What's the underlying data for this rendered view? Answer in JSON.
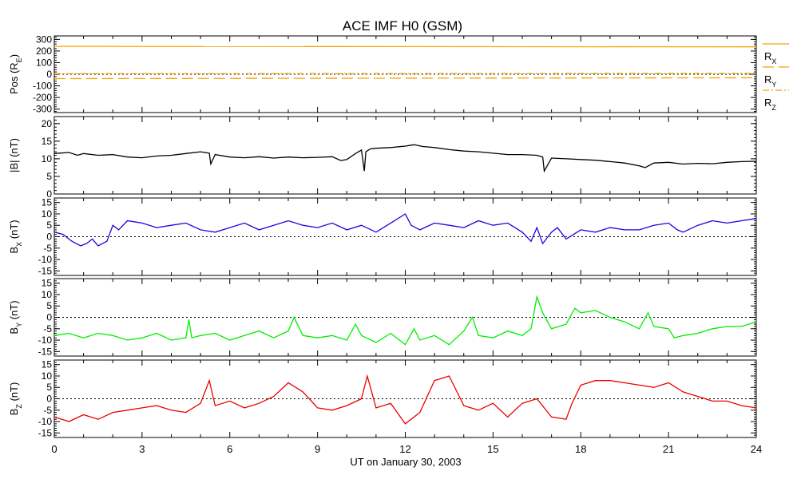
{
  "chart_data": {
    "type": "line",
    "title": "ACE IMF H0 (GSM)",
    "xlabel": "UT on January 30, 2003",
    "x_range": [
      0,
      24
    ],
    "x_ticks": [
      "0",
      "3",
      "6",
      "9",
      "12",
      "15",
      "18",
      "21",
      "24"
    ],
    "panels": [
      {
        "id": "pos",
        "ylabel_main": "Pos (R",
        "ylabel_sub": "E",
        "ylabel_tail": ")",
        "ylim": [
          -330,
          330
        ],
        "y_ticks": [
          300,
          200,
          100,
          0,
          -100,
          -200,
          -300
        ],
        "zero_line": true,
        "legend": [
          {
            "main": "R",
            "sub": "X",
            "dash": "solid",
            "color": "#f5a300"
          },
          {
            "main": "R",
            "sub": "Y",
            "dash": "longdash",
            "color": "#f5a300"
          },
          {
            "main": "R",
            "sub": "Z",
            "dash": "dashdot",
            "color": "#f5a300"
          }
        ],
        "series": [
          {
            "color": "#f5a300",
            "dash": "solid",
            "x": [
              0,
              24
            ],
            "y": [
              240,
              236
            ]
          },
          {
            "color": "#f5a300",
            "dash": "longdash",
            "x": [
              0,
              24
            ],
            "y": [
              -38,
              -30
            ]
          },
          {
            "color": "#f5a300",
            "dash": "dashdot",
            "x": [
              0,
              24
            ],
            "y": [
              5,
              7
            ]
          }
        ]
      },
      {
        "id": "btotal",
        "ylabel_main": "|B| (nT)",
        "ylabel_sub": "",
        "ylabel_tail": "",
        "ylim": [
          0,
          22
        ],
        "y_ticks": [
          20,
          15,
          10,
          5,
          0
        ],
        "zero_line": false,
        "series": [
          {
            "color": "#000000",
            "dash": "solid",
            "x": [
              0,
              0.5,
              0.8,
              1,
              1.5,
              2,
              2.5,
              3,
              3.5,
              4,
              4.5,
              5,
              5.3,
              5.35,
              5.5,
              6,
              6.5,
              7,
              7.5,
              8,
              8.5,
              9,
              9.5,
              9.8,
              10,
              10.3,
              10.5,
              10.6,
              10.65,
              10.8,
              11,
              11.5,
              12,
              12.3,
              12.6,
              13,
              13.5,
              14,
              14.5,
              15,
              15.5,
              16,
              16.5,
              16.7,
              16.75,
              17,
              17.5,
              18,
              18.5,
              19,
              19.5,
              20,
              20.2,
              20.5,
              21,
              21.5,
              22,
              22.5,
              23,
              23.5,
              24
            ],
            "y": [
              11.5,
              11.8,
              11,
              11.5,
              11,
              11.2,
              10.5,
              10.3,
              10.8,
              11,
              11.5,
              12,
              11.6,
              8.5,
              11.2,
              10.5,
              10.3,
              10.6,
              10.2,
              10.5,
              10.3,
              10.4,
              10.6,
              9.5,
              9.8,
              11.5,
              12.5,
              6.5,
              12,
              12.8,
              13,
              13.2,
              13.6,
              14,
              13.5,
              13.2,
              12.6,
              12.2,
              12,
              11.6,
              11.2,
              11.2,
              11,
              10.5,
              6.5,
              10.2,
              10,
              9.8,
              9.6,
              9.2,
              8.8,
              8,
              7.5,
              8.8,
              9,
              8.5,
              8.7,
              8.6,
              9,
              9.2,
              9.3
            ]
          }
        ]
      },
      {
        "id": "bx",
        "ylabel_main": "B",
        "ylabel_sub": "X",
        "ylabel_tail": " (nT)",
        "ylim": [
          -17,
          17
        ],
        "y_ticks": [
          15,
          10,
          5,
          0,
          -5,
          -10,
          -15
        ],
        "zero_line": true,
        "series": [
          {
            "color": "#2200dd",
            "dash": "solid",
            "x": [
              0,
              0.3,
              0.6,
              0.9,
              1.1,
              1.3,
              1.5,
              1.8,
              2,
              2.2,
              2.5,
              3,
              3.5,
              4,
              4.5,
              5,
              5.5,
              6,
              6.5,
              7,
              7.5,
              8,
              8.5,
              9,
              9.5,
              10,
              10.5,
              11,
              11.5,
              12,
              12.2,
              12.5,
              13,
              13.5,
              14,
              14.5,
              15,
              15.5,
              16,
              16.3,
              16.5,
              16.7,
              17,
              17.2,
              17.5,
              18,
              18.5,
              19,
              19.5,
              20,
              20.5,
              21,
              21.3,
              21.5,
              22,
              22.5,
              23,
              23.5,
              24
            ],
            "y": [
              2,
              1,
              -2,
              -4,
              -3,
              -1,
              -4,
              -2,
              5,
              3,
              7,
              6,
              4,
              5,
              6,
              3,
              2,
              4,
              6,
              3,
              5,
              7,
              5,
              4,
              6,
              3,
              5,
              2,
              6,
              10,
              5,
              3,
              6,
              5,
              4,
              7,
              5,
              6,
              2,
              -2,
              4,
              -3,
              2,
              4,
              -1,
              3,
              2,
              4,
              3,
              3,
              5,
              6,
              3,
              2,
              5,
              7,
              6,
              7,
              8
            ]
          }
        ]
      },
      {
        "id": "by",
        "ylabel_main": "B",
        "ylabel_sub": "Y",
        "ylabel_tail": " (nT)",
        "ylim": [
          -17,
          17
        ],
        "y_ticks": [
          15,
          10,
          5,
          0,
          -5,
          -10,
          -15
        ],
        "zero_line": true,
        "series": [
          {
            "color": "#00ee00",
            "dash": "solid",
            "x": [
              0,
              0.5,
              1,
              1.5,
              2,
              2.5,
              3,
              3.5,
              4,
              4.5,
              4.6,
              4.7,
              5,
              5.5,
              6,
              6.5,
              7,
              7.5,
              8,
              8.2,
              8.5,
              9,
              9.5,
              10,
              10.3,
              10.5,
              11,
              11.5,
              12,
              12.3,
              12.5,
              13,
              13.5,
              14,
              14.3,
              14.5,
              15,
              15.5,
              16,
              16.3,
              16.5,
              16.7,
              17,
              17.5,
              17.8,
              18,
              18.5,
              19,
              19.5,
              20,
              20.3,
              20.5,
              21,
              21.2,
              21.5,
              22,
              22.5,
              23,
              23.5,
              24
            ],
            "y": [
              -8,
              -7,
              -9,
              -7,
              -8,
              -10,
              -9,
              -7,
              -10,
              -9,
              -1,
              -9,
              -8,
              -7,
              -10,
              -8,
              -6,
              -9,
              -6,
              0,
              -8,
              -9,
              -8,
              -10,
              -3,
              -8,
              -11,
              -7,
              -12,
              -5,
              -10,
              -8,
              -12,
              -6,
              0,
              -8,
              -9,
              -6,
              -8,
              -5,
              9,
              2,
              -5,
              -3,
              4,
              2,
              3,
              0,
              -2,
              -5,
              2,
              -4,
              -5,
              -9,
              -8,
              -7,
              -5,
              -4,
              -4,
              -2
            ]
          }
        ]
      },
      {
        "id": "bz",
        "ylabel_main": "B",
        "ylabel_sub": "Z",
        "ylabel_tail": " (nT)",
        "ylim": [
          -17,
          17
        ],
        "y_ticks": [
          15,
          10,
          5,
          0,
          -5,
          -10,
          -15
        ],
        "zero_line": true,
        "series": [
          {
            "color": "#ee0000",
            "dash": "solid",
            "x": [
              0,
              0.5,
              1,
              1.5,
              2,
              2.5,
              3,
              3.5,
              4,
              4.5,
              5,
              5.3,
              5.5,
              6,
              6.5,
              7,
              7.5,
              8,
              8.5,
              9,
              9.5,
              10,
              10.5,
              10.7,
              11,
              11.5,
              12,
              12.5,
              13,
              13.5,
              14,
              14.5,
              15,
              15.5,
              16,
              16.5,
              17,
              17.5,
              17.7,
              18,
              18.5,
              19,
              19.5,
              20,
              20.5,
              21,
              21.5,
              22,
              22.5,
              23,
              23.5,
              24
            ],
            "y": [
              -8,
              -10,
              -7,
              -9,
              -6,
              -5,
              -4,
              -3,
              -5,
              -6,
              -2,
              8,
              -3,
              -1,
              -4,
              -2,
              1,
              7,
              3,
              -4,
              -5,
              -3,
              0,
              10,
              -4,
              -2,
              -11,
              -6,
              8,
              10,
              -3,
              -5,
              -2,
              -8,
              -2,
              0,
              -8,
              -9,
              -2,
              6,
              8,
              8,
              7,
              6,
              5,
              7,
              3,
              1,
              -1,
              -1,
              -3,
              -4
            ]
          }
        ]
      }
    ]
  }
}
